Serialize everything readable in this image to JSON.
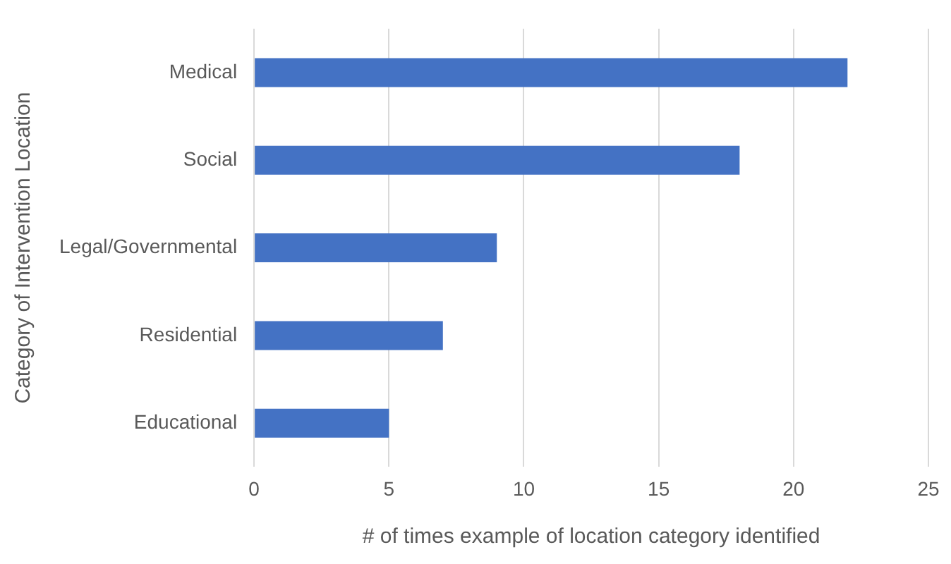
{
  "chart_data": {
    "type": "bar",
    "orientation": "horizontal",
    "xlabel": "# of times example of location category identified",
    "ylabel": "Category of Intervention Location",
    "categories": [
      "Medical",
      "Social",
      "Legal/Governmental",
      "Residential",
      "Educational"
    ],
    "values": [
      22,
      18,
      9,
      7,
      5
    ],
    "color": "#4472c4",
    "xlim": [
      0,
      25
    ],
    "xticks": [
      0,
      5,
      10,
      15,
      20,
      25
    ],
    "grid": "x"
  }
}
